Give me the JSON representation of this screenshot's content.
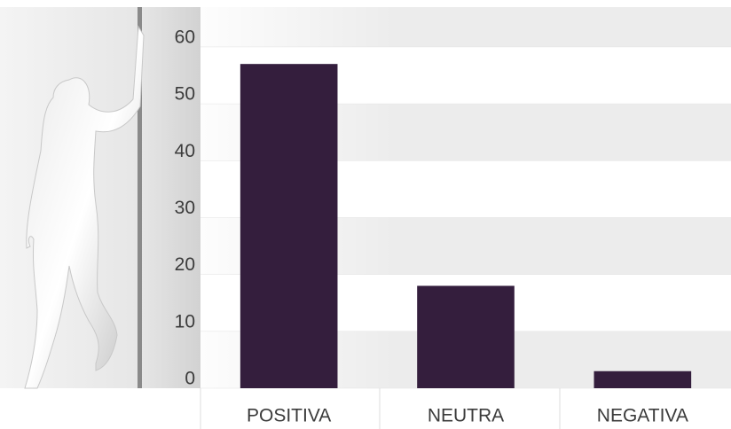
{
  "chart_data": {
    "type": "bar",
    "categories": [
      "POSITIVA",
      "NEUTRA",
      "NEGATIVA"
    ],
    "values": [
      57,
      18,
      3
    ],
    "color": "#341e3d",
    "ylim": [
      0,
      67
    ],
    "yticks": [
      0,
      10,
      20,
      30,
      40,
      50,
      60
    ],
    "grid": true
  }
}
